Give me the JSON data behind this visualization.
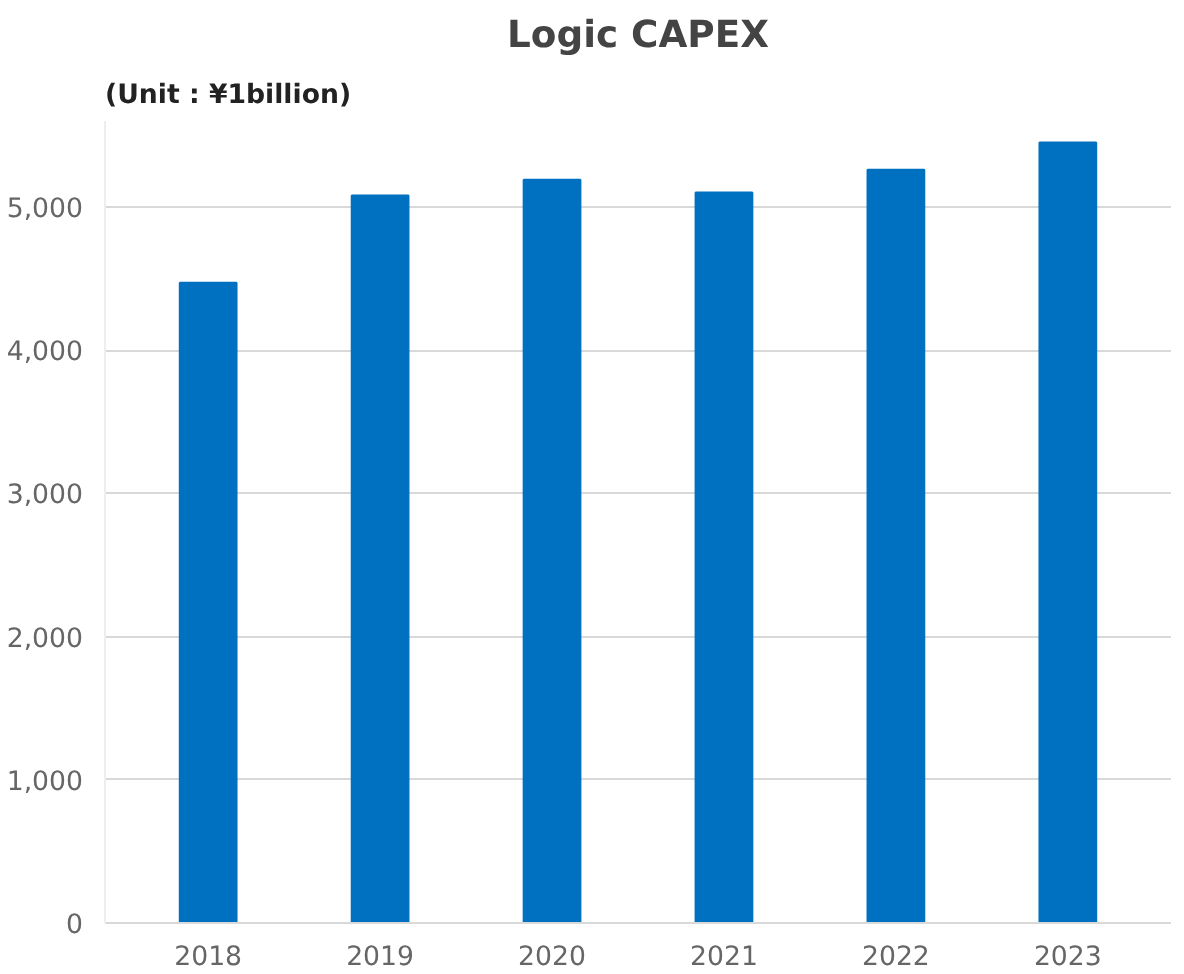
{
  "chart_data": {
    "type": "bar",
    "title": "Logic CAPEX",
    "subtitle": "(Unit : ¥1billion)",
    "categories": [
      "2018",
      "2019",
      "2020",
      "2021",
      "2022",
      "2023"
    ],
    "values": [
      4470,
      5080,
      5190,
      5100,
      5260,
      5450
    ],
    "color": "#0070c0",
    "ylim": [
      0,
      5600
    ],
    "yticks": [
      {
        "value": 0,
        "label": "0"
      },
      {
        "value": 1000,
        "label": "1,000"
      },
      {
        "value": 2000,
        "label": "2,000"
      },
      {
        "value": 3000,
        "label": "3,000"
      },
      {
        "value": 4000,
        "label": "4,000"
      },
      {
        "value": 5000,
        "label": "5,000"
      }
    ],
    "grid": "y"
  }
}
